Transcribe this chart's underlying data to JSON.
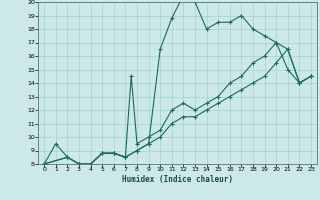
{
  "xlabel": "Humidex (Indice chaleur)",
  "xlim": [
    -0.5,
    23.5
  ],
  "ylim": [
    8,
    20
  ],
  "xticks": [
    0,
    1,
    2,
    3,
    4,
    5,
    6,
    7,
    8,
    9,
    10,
    11,
    12,
    13,
    14,
    15,
    16,
    17,
    18,
    19,
    20,
    21,
    22,
    23
  ],
  "yticks": [
    8,
    9,
    10,
    11,
    12,
    13,
    14,
    15,
    16,
    17,
    18,
    19,
    20
  ],
  "bg_color": "#cce8e8",
  "grid_color": "#99cccc",
  "line_color": "#1a6b5a",
  "line1_x": [
    0,
    1,
    2,
    3,
    4,
    5,
    6,
    7,
    8,
    9,
    10,
    11,
    12,
    13,
    14,
    15,
    16,
    17,
    18,
    19,
    20,
    21,
    22,
    23
  ],
  "line1_y": [
    8.0,
    9.5,
    8.5,
    8.0,
    8.0,
    8.8,
    8.8,
    8.5,
    9.0,
    9.5,
    16.5,
    18.8,
    20.5,
    20.0,
    18.0,
    18.5,
    18.5,
    19.0,
    18.0,
    17.5,
    17.0,
    15.0,
    14.0,
    14.5
  ],
  "line2_x": [
    0,
    2,
    3,
    4,
    5,
    6,
    7,
    7.5,
    8,
    9,
    10,
    11,
    12,
    13,
    14,
    15,
    16,
    17,
    18,
    19,
    20,
    21,
    22,
    23
  ],
  "line2_y": [
    8.0,
    8.5,
    8.0,
    8.0,
    8.8,
    8.8,
    8.5,
    14.5,
    9.5,
    10.0,
    10.5,
    12.0,
    12.5,
    12.0,
    12.5,
    13.0,
    14.0,
    14.5,
    15.5,
    16.0,
    17.0,
    16.5,
    14.0,
    14.5
  ],
  "line3_x": [
    0,
    2,
    3,
    4,
    5,
    6,
    7,
    8,
    9,
    10,
    11,
    12,
    13,
    14,
    15,
    16,
    17,
    18,
    19,
    20,
    21,
    22,
    23
  ],
  "line3_y": [
    8.0,
    8.5,
    8.0,
    8.0,
    8.8,
    8.8,
    8.5,
    9.0,
    9.5,
    10.0,
    11.0,
    11.5,
    11.5,
    12.0,
    12.5,
    13.0,
    13.5,
    14.0,
    14.5,
    15.5,
    16.5,
    14.0,
    14.5
  ]
}
